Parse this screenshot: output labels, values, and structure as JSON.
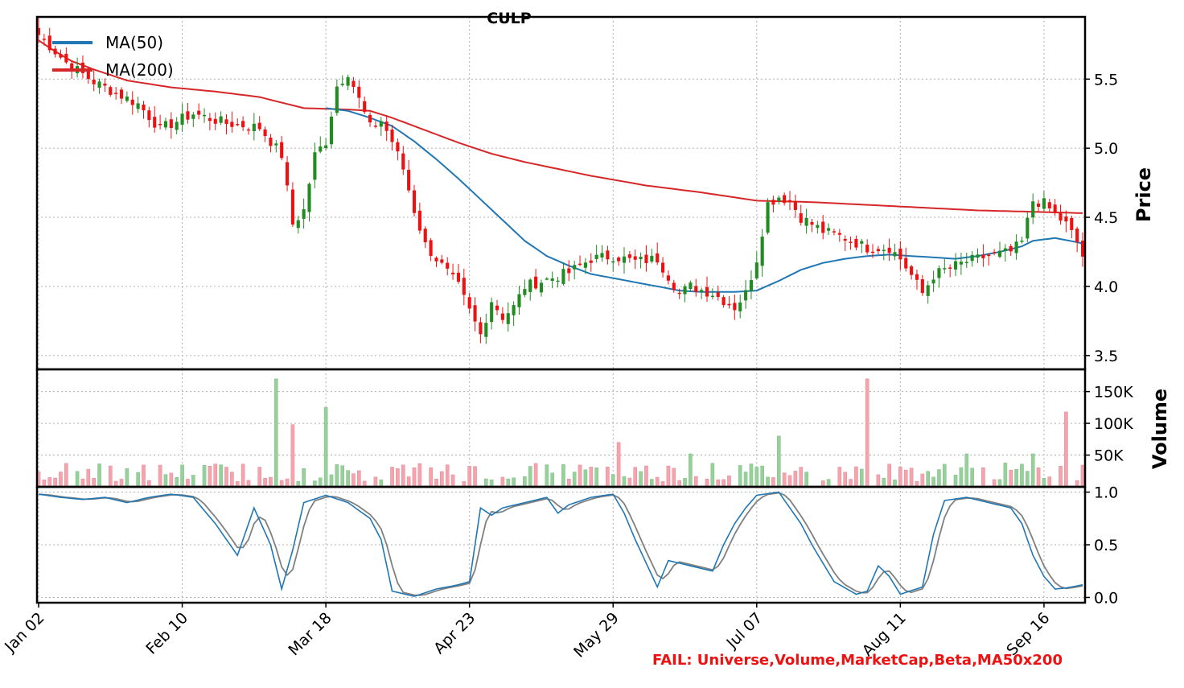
{
  "chart_data": {
    "type": "candlestick",
    "title": "CULP",
    "failure_text": "FAIL: Universe,Volume,MarketCap,Beta,MA50x200",
    "colors": {
      "up": "#228b22",
      "down": "#ee1111",
      "ma50": "#1f77b4",
      "ma200": "#d62728",
      "vol_up": "#98d09c",
      "vol_down": "#f5a3ad",
      "stoch_k": "#1f77b4",
      "stoch_d": "#808080",
      "fail_text": "#ee1111"
    },
    "x_tick_labels": [
      "Jan 02",
      "Feb 10",
      "Mar 18",
      "Apr 23",
      "May 29",
      "Jul 07",
      "Aug 11",
      "Sep 16"
    ],
    "x_tick_index": [
      0,
      26,
      52,
      78,
      104,
      130,
      156,
      182
    ],
    "n_bars": 190,
    "price_panel": {
      "ylabel": "Price",
      "ylim": [
        3.4,
        5.95
      ],
      "ticks": [
        3.5,
        4.0,
        4.5,
        5.0,
        5.5
      ],
      "tick_labels": [
        "3.5",
        "4.0",
        "4.5",
        "5.0",
        "5.5"
      ],
      "legend": [
        "MA(50)",
        "MA(200)"
      ],
      "legend_position": "top-left",
      "close_anchors": [
        [
          0,
          5.82
        ],
        [
          5,
          5.62
        ],
        [
          10,
          5.48
        ],
        [
          18,
          5.32
        ],
        [
          22,
          5.14
        ],
        [
          28,
          5.25
        ],
        [
          34,
          5.18
        ],
        [
          40,
          5.15
        ],
        [
          44,
          4.95
        ],
        [
          46,
          4.45
        ],
        [
          48,
          4.55
        ],
        [
          50,
          4.95
        ],
        [
          52,
          5.05
        ],
        [
          54,
          5.45
        ],
        [
          56,
          5.55
        ],
        [
          58,
          5.35
        ],
        [
          60,
          5.15
        ],
        [
          62,
          5.2
        ],
        [
          64,
          5.05
        ],
        [
          66,
          4.85
        ],
        [
          68,
          4.55
        ],
        [
          70,
          4.3
        ],
        [
          72,
          4.2
        ],
        [
          74,
          4.1
        ],
        [
          76,
          4.0
        ],
        [
          78,
          3.82
        ],
        [
          80,
          3.65
        ],
        [
          82,
          3.9
        ],
        [
          84,
          3.78
        ],
        [
          86,
          3.85
        ],
        [
          88,
          4.0
        ],
        [
          92,
          4.05
        ],
        [
          96,
          4.1
        ],
        [
          100,
          4.2
        ],
        [
          104,
          4.22
        ],
        [
          108,
          4.18
        ],
        [
          112,
          4.2
        ],
        [
          116,
          3.95
        ],
        [
          118,
          4.0
        ],
        [
          122,
          3.95
        ],
        [
          126,
          3.85
        ],
        [
          128,
          3.95
        ],
        [
          130,
          4.2
        ],
        [
          132,
          4.6
        ],
        [
          134,
          4.65
        ],
        [
          136,
          4.62
        ],
        [
          138,
          4.5
        ],
        [
          142,
          4.4
        ],
        [
          146,
          4.35
        ],
        [
          150,
          4.28
        ],
        [
          154,
          4.28
        ],
        [
          156,
          4.2
        ],
        [
          158,
          4.08
        ],
        [
          160,
          3.95
        ],
        [
          162,
          4.08
        ],
        [
          164,
          4.12
        ],
        [
          168,
          4.18
        ],
        [
          172,
          4.22
        ],
        [
          176,
          4.25
        ],
        [
          178,
          4.32
        ],
        [
          180,
          4.62
        ],
        [
          182,
          4.6
        ],
        [
          184,
          4.52
        ],
        [
          186,
          4.45
        ],
        [
          188,
          4.32
        ],
        [
          189,
          4.22
        ]
      ],
      "ma50_anchors": [
        [
          52,
          5.29
        ],
        [
          56,
          5.27
        ],
        [
          60,
          5.22
        ],
        [
          64,
          5.16
        ],
        [
          68,
          5.05
        ],
        [
          72,
          4.92
        ],
        [
          76,
          4.78
        ],
        [
          80,
          4.63
        ],
        [
          84,
          4.48
        ],
        [
          88,
          4.33
        ],
        [
          92,
          4.22
        ],
        [
          96,
          4.15
        ],
        [
          100,
          4.09
        ],
        [
          104,
          4.06
        ],
        [
          108,
          4.03
        ],
        [
          112,
          4.0
        ],
        [
          116,
          3.97
        ],
        [
          120,
          3.96
        ],
        [
          126,
          3.96
        ],
        [
          130,
          3.97
        ],
        [
          134,
          4.04
        ],
        [
          138,
          4.12
        ],
        [
          142,
          4.17
        ],
        [
          146,
          4.2
        ],
        [
          150,
          4.22
        ],
        [
          154,
          4.23
        ],
        [
          158,
          4.22
        ],
        [
          162,
          4.21
        ],
        [
          166,
          4.2
        ],
        [
          170,
          4.22
        ],
        [
          174,
          4.25
        ],
        [
          178,
          4.29
        ],
        [
          180,
          4.33
        ],
        [
          184,
          4.35
        ],
        [
          188,
          4.32
        ],
        [
          189,
          4.31
        ]
      ],
      "ma200_anchors": [
        [
          0,
          5.78
        ],
        [
          3,
          5.7
        ],
        [
          6,
          5.63
        ],
        [
          10,
          5.57
        ],
        [
          16,
          5.49
        ],
        [
          24,
          5.44
        ],
        [
          32,
          5.41
        ],
        [
          40,
          5.37
        ],
        [
          44,
          5.33
        ],
        [
          48,
          5.29
        ],
        [
          56,
          5.28
        ],
        [
          60,
          5.27
        ],
        [
          64,
          5.22
        ],
        [
          70,
          5.13
        ],
        [
          76,
          5.04
        ],
        [
          82,
          4.96
        ],
        [
          88,
          4.9
        ],
        [
          94,
          4.85
        ],
        [
          100,
          4.8
        ],
        [
          110,
          4.73
        ],
        [
          120,
          4.68
        ],
        [
          130,
          4.62
        ],
        [
          140,
          4.61
        ],
        [
          150,
          4.59
        ],
        [
          160,
          4.57
        ],
        [
          170,
          4.55
        ],
        [
          180,
          4.54
        ],
        [
          189,
          4.53
        ]
      ]
    },
    "volume_panel": {
      "ylabel": "Volume",
      "ylim": [
        0,
        185000
      ],
      "ticks": [
        50000,
        100000,
        150000
      ],
      "tick_labels": [
        "50K",
        "100K",
        "150K"
      ],
      "spikes": [
        [
          43,
          170000
        ],
        [
          46,
          98000
        ],
        [
          52,
          125000
        ],
        [
          105,
          70000
        ],
        [
          118,
          52000
        ],
        [
          134,
          80000
        ],
        [
          150,
          170000
        ],
        [
          168,
          52000
        ],
        [
          180,
          52000
        ],
        [
          186,
          118000
        ]
      ]
    },
    "stoch_panel": {
      "ylim": [
        -0.05,
        1.05
      ],
      "ticks": [
        0.0,
        0.5,
        1.0
      ],
      "tick_labels": [
        "0.0",
        "0.5",
        "1.0"
      ],
      "k_anchors": [
        [
          0,
          0.98
        ],
        [
          4,
          0.95
        ],
        [
          8,
          0.93
        ],
        [
          12,
          0.95
        ],
        [
          16,
          0.9
        ],
        [
          20,
          0.95
        ],
        [
          24,
          0.98
        ],
        [
          28,
          0.95
        ],
        [
          32,
          0.7
        ],
        [
          36,
          0.4
        ],
        [
          39,
          0.85
        ],
        [
          42,
          0.5
        ],
        [
          44,
          0.08
        ],
        [
          46,
          0.45
        ],
        [
          48,
          0.9
        ],
        [
          52,
          0.97
        ],
        [
          56,
          0.9
        ],
        [
          60,
          0.75
        ],
        [
          62,
          0.55
        ],
        [
          64,
          0.06
        ],
        [
          68,
          0.01
        ],
        [
          72,
          0.08
        ],
        [
          76,
          0.12
        ],
        [
          78,
          0.15
        ],
        [
          80,
          0.85
        ],
        [
          82,
          0.78
        ],
        [
          84,
          0.85
        ],
        [
          88,
          0.9
        ],
        [
          92,
          0.95
        ],
        [
          94,
          0.8
        ],
        [
          96,
          0.88
        ],
        [
          100,
          0.95
        ],
        [
          104,
          0.98
        ],
        [
          106,
          0.8
        ],
        [
          108,
          0.55
        ],
        [
          112,
          0.1
        ],
        [
          114,
          0.35
        ],
        [
          118,
          0.3
        ],
        [
          122,
          0.25
        ],
        [
          124,
          0.5
        ],
        [
          126,
          0.7
        ],
        [
          128,
          0.85
        ],
        [
          130,
          0.97
        ],
        [
          134,
          1.0
        ],
        [
          138,
          0.7
        ],
        [
          140,
          0.5
        ],
        [
          144,
          0.15
        ],
        [
          148,
          0.03
        ],
        [
          150,
          0.06
        ],
        [
          152,
          0.3
        ],
        [
          154,
          0.2
        ],
        [
          156,
          0.03
        ],
        [
          160,
          0.1
        ],
        [
          162,
          0.6
        ],
        [
          164,
          0.92
        ],
        [
          168,
          0.95
        ],
        [
          172,
          0.9
        ],
        [
          176,
          0.85
        ],
        [
          178,
          0.7
        ],
        [
          180,
          0.4
        ],
        [
          182,
          0.2
        ],
        [
          184,
          0.08
        ],
        [
          186,
          0.09
        ],
        [
          189,
          0.12
        ]
      ]
    }
  }
}
